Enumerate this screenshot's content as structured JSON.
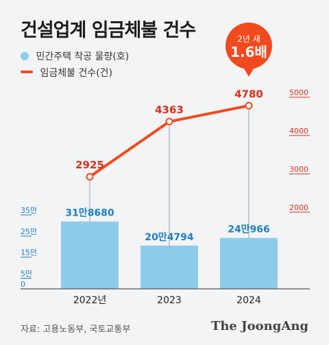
{
  "title": "건설업계 임금체불 건수",
  "legend": {
    "bar_label": "민간주택 착공 물량(호)",
    "line_label": "임금체불 건수(건)"
  },
  "callout": {
    "line1": "2년 새",
    "line2": "1.6배"
  },
  "source": "자료: 고용노동부, 국토교통부",
  "brand": "The JoongAng",
  "colors": {
    "bar": "#8ccbea",
    "bar_label": "#1e7fc4",
    "line": "#f24a1e",
    "line_label": "#d9301b",
    "callout": "#f24a1e"
  },
  "chart_data": {
    "type": "bar+line",
    "categories": [
      "2022년",
      "2023",
      "2024"
    ],
    "bars": {
      "name": "민간주택 착공 물량(호)",
      "values": [
        318680,
        204794,
        240966
      ],
      "labels": [
        "31만8680",
        "20만4794",
        "24만966"
      ],
      "axis": {
        "min": 0,
        "max": 350000,
        "ticks": [
          0,
          50000,
          150000,
          250000,
          350000
        ],
        "tick_labels": [
          "0",
          "5만",
          "15만",
          "25만",
          "35만"
        ]
      }
    },
    "line": {
      "name": "임금체불 건수(건)",
      "values": [
        2925,
        4363,
        4780
      ],
      "labels": [
        "2925",
        "4363",
        "4780"
      ],
      "axis": {
        "min": 2000,
        "max": 5000,
        "ticks": [
          2000,
          3000,
          4000,
          5000
        ],
        "tick_labels": [
          "2000",
          "3000",
          "4000",
          "5000"
        ]
      }
    }
  }
}
